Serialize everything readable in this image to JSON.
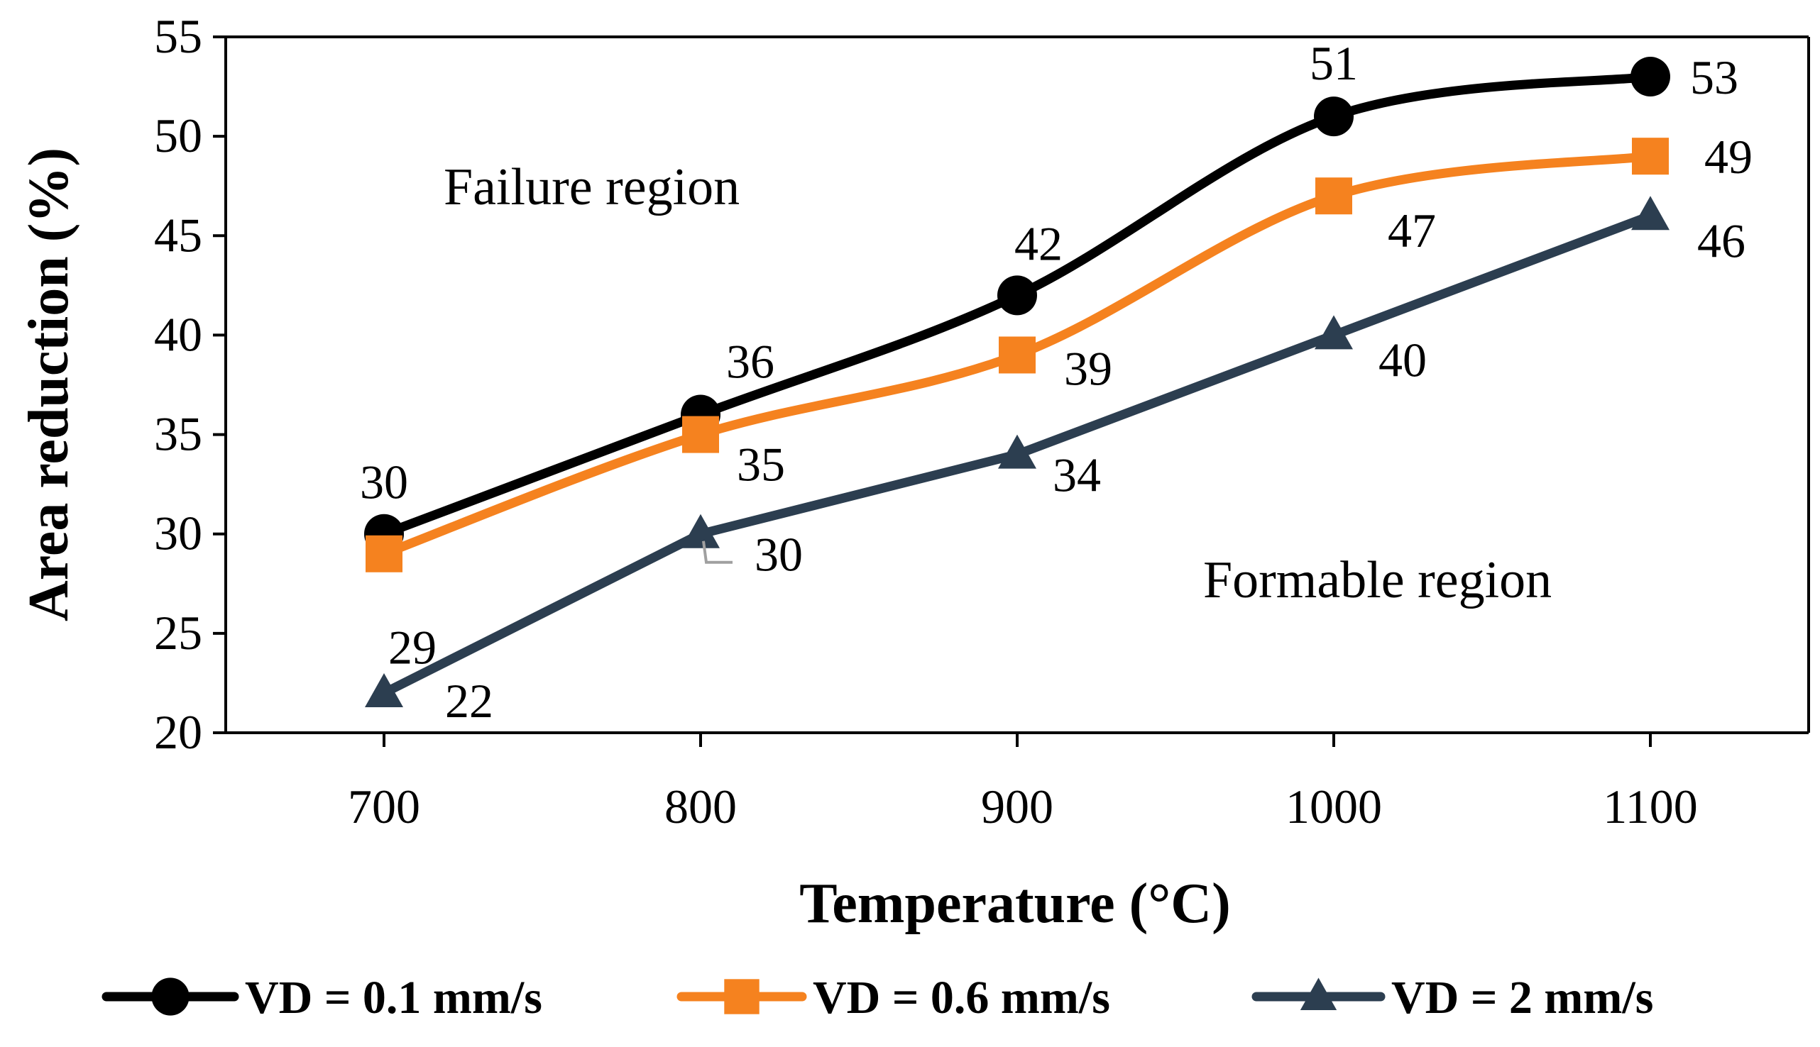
{
  "chart_data": {
    "type": "line",
    "title": "",
    "xlabel": "Temperature (°C)",
    "ylabel": "Area reduction (%)",
    "x": [
      700,
      800,
      900,
      1000,
      1100
    ],
    "x_tick_labels": [
      "700",
      "800",
      "900",
      "1000",
      "1100"
    ],
    "xlim": [
      650,
      1150
    ],
    "ylim": [
      20,
      55
    ],
    "y_ticks": [
      20,
      25,
      30,
      35,
      40,
      45,
      50,
      55
    ],
    "y_tick_labels": [
      "20",
      "25",
      "30",
      "35",
      "40",
      "45",
      "50",
      "55"
    ],
    "grid": false,
    "legend_position": "bottom",
    "series": [
      {
        "name": "VD = 0.1 mm/s",
        "values": [
          30,
          36,
          42,
          51,
          53
        ],
        "labels": [
          "30",
          "36",
          "42",
          "51",
          "53"
        ],
        "color": "#000000",
        "marker": "circle",
        "smooth": true
      },
      {
        "name": "VD = 0.6 mm/s",
        "values": [
          29,
          35,
          39,
          47,
          49
        ],
        "labels": [
          "29",
          "35",
          "39",
          "47",
          "49"
        ],
        "color": "#f5821f",
        "marker": "square",
        "smooth": true
      },
      {
        "name": "VD = 2 mm/s",
        "values": [
          22,
          30,
          34,
          40,
          46
        ],
        "labels": [
          "22",
          "30",
          "34",
          "40",
          "46"
        ],
        "color": "#2c3e50",
        "marker": "triangle",
        "smooth": false
      }
    ],
    "annotations": [
      {
        "text": "Failure region"
      },
      {
        "text": "Formable region"
      }
    ]
  }
}
